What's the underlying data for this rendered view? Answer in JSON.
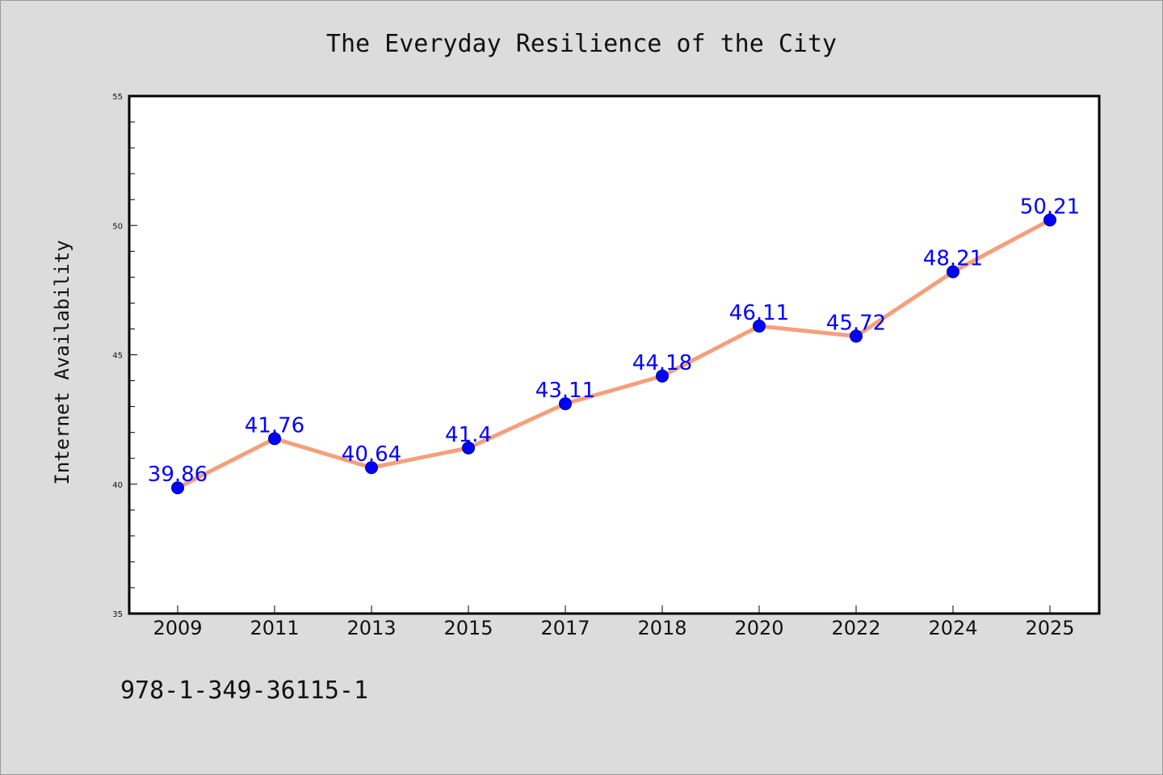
{
  "chart_data": {
    "type": "line",
    "title": "The Everyday Resilience of the City",
    "xlabel": "",
    "ylabel": "Internet Availability",
    "categories": [
      "2009",
      "2011",
      "2013",
      "2015",
      "2017",
      "2018",
      "2020",
      "2022",
      "2024",
      "2025"
    ],
    "series": [
      {
        "values": [
          39.86,
          41.76,
          40.64,
          41.4,
          43.11,
          44.18,
          46.11,
          45.72,
          48.21,
          50.21
        ],
        "data_labels": [
          "39.86",
          "41.76",
          "40.64",
          "41.4",
          "43.11",
          "44.18",
          "46.11",
          "45.72",
          "48.21",
          "50.21"
        ],
        "line_color": "#f4a07c",
        "marker_color": "#0000ff"
      }
    ],
    "ylim": [
      35,
      55
    ],
    "yticks": [
      "35",
      "40",
      "45",
      "50",
      "55"
    ],
    "grid": false,
    "legend": "none"
  },
  "footer": {
    "isbn": "978-1-349-36115-1"
  },
  "colors": {
    "background": "#dcdcdc",
    "plot_background": "#ffffff",
    "data_label": "#0000ff"
  }
}
